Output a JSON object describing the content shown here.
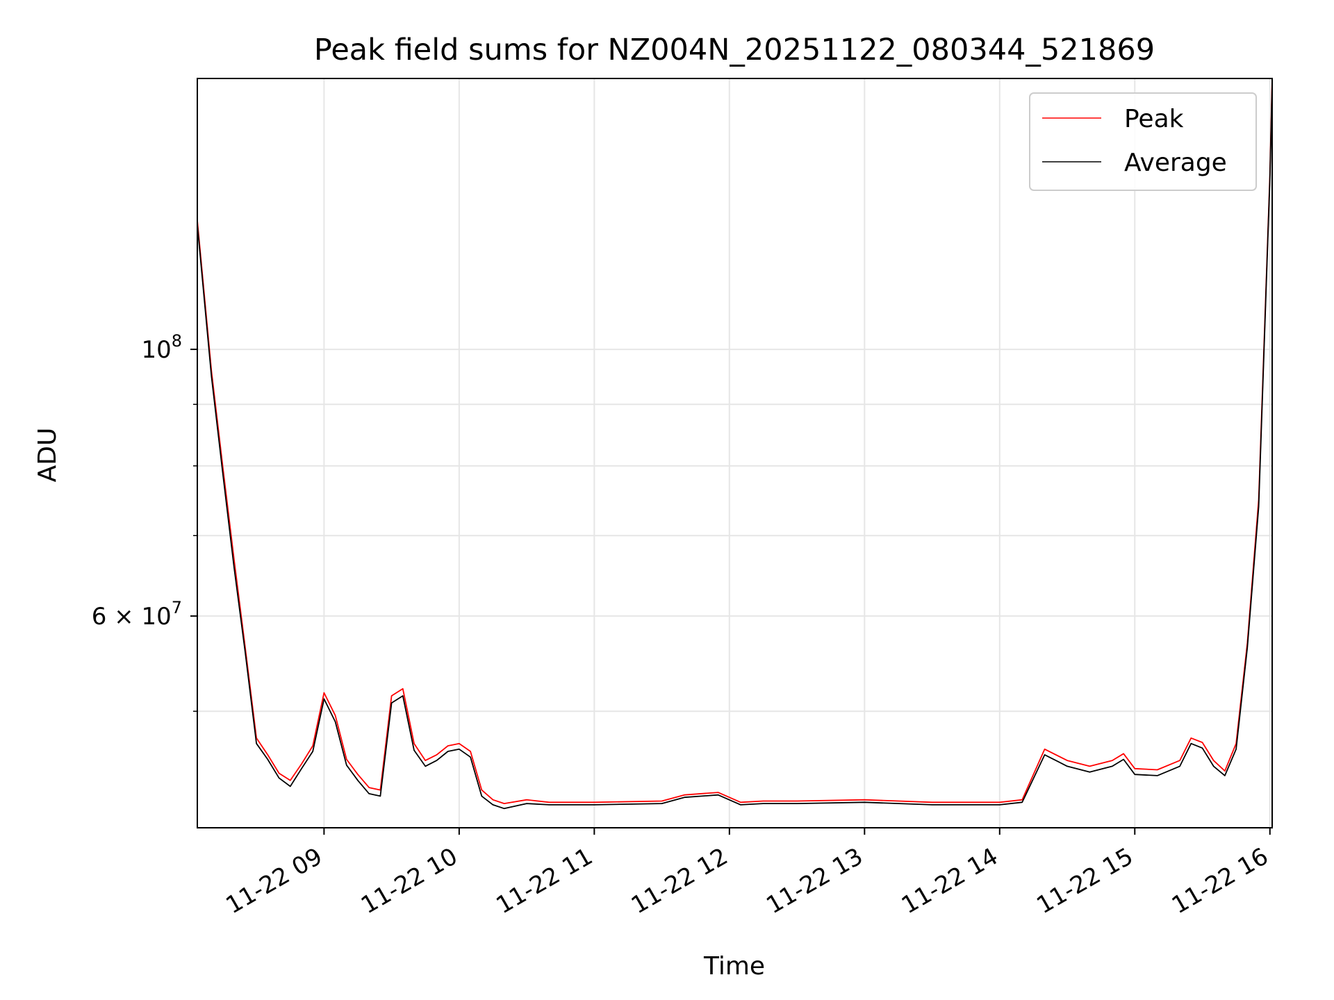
{
  "chart_data": {
    "type": "line",
    "title": "Peak field sums for NZ004N_20251122_080344_521869",
    "xlabel": "Time",
    "ylabel": "ADU",
    "yscale": "log",
    "grid": true,
    "legend_position": "top-right",
    "xlim": [
      "2025-11-22 08:03:44",
      "2025-11-22 16:01:00"
    ],
    "ylim": [
      40000000,
      168000000
    ],
    "x_ticks": [
      {
        "x": "2025-11-22 09:00",
        "label": "11-22 09"
      },
      {
        "x": "2025-11-22 10:00",
        "label": "11-22 10"
      },
      {
        "x": "2025-11-22 11:00",
        "label": "11-22 11"
      },
      {
        "x": "2025-11-22 12:00",
        "label": "11-22 12"
      },
      {
        "x": "2025-11-22 13:00",
        "label": "11-22 13"
      },
      {
        "x": "2025-11-22 14:00",
        "label": "11-22 14"
      },
      {
        "x": "2025-11-22 15:00",
        "label": "11-22 15"
      },
      {
        "x": "2025-11-22 16:00",
        "label": "11-22 16"
      }
    ],
    "y_major_ticks": [
      {
        "y": 60000000,
        "base": "6 × 10",
        "exp": "7"
      },
      {
        "y": 100000000,
        "base": "10",
        "exp": "8"
      }
    ],
    "y_minor_ticks": [
      50000000,
      70000000,
      80000000,
      90000000
    ],
    "x": [
      "08:03:44",
      "08:10",
      "08:15",
      "08:20",
      "08:25",
      "08:30",
      "08:35",
      "08:40",
      "08:45",
      "08:50",
      "08:55",
      "09:00",
      "09:05",
      "09:10",
      "09:15",
      "09:20",
      "09:25",
      "09:30",
      "09:35",
      "09:40",
      "09:45",
      "09:50",
      "09:55",
      "10:00",
      "10:05",
      "10:10",
      "10:15",
      "10:20",
      "10:30",
      "10:40",
      "10:50",
      "11:00",
      "11:30",
      "11:40",
      "11:55",
      "12:05",
      "12:15",
      "12:30",
      "13:00",
      "13:30",
      "14:00",
      "14:10",
      "14:20",
      "14:30",
      "14:40",
      "14:50",
      "14:55",
      "15:00",
      "15:10",
      "15:20",
      "15:25",
      "15:30",
      "15:35",
      "15:40",
      "15:45",
      "15:50",
      "15:55",
      "16:00",
      "16:01"
    ],
    "series": [
      {
        "name": "Peak",
        "color": "#ff0000",
        "values": [
          128000000,
          96000000,
          80000000,
          67000000,
          56500000,
          47500000,
          46000000,
          44400000,
          43800000,
          45200000,
          46800000,
          51800000,
          49600000,
          45600000,
          44300000,
          43200000,
          43000000,
          51500000,
          52200000,
          47000000,
          45500000,
          46000000,
          46800000,
          47000000,
          46300000,
          43000000,
          42200000,
          41900000,
          42200000,
          42000000,
          42000000,
          42000000,
          42100000,
          42600000,
          42800000,
          42000000,
          42100000,
          42100000,
          42200000,
          42000000,
          42000000,
          42200000,
          46500000,
          45500000,
          45000000,
          45500000,
          46100000,
          44800000,
          44700000,
          45500000,
          47500000,
          47100000,
          45500000,
          44600000,
          47000000,
          57000000,
          75000000,
          140000000,
          168000000
        ]
      },
      {
        "name": "Average",
        "color": "#000000",
        "values": [
          127000000,
          95000000,
          79000000,
          66000000,
          56000000,
          47000000,
          45600000,
          44000000,
          43300000,
          44800000,
          46300000,
          51200000,
          49000000,
          45100000,
          43800000,
          42700000,
          42500000,
          50800000,
          51500000,
          46400000,
          45000000,
          45500000,
          46300000,
          46500000,
          45800000,
          42500000,
          41800000,
          41500000,
          41900000,
          41800000,
          41800000,
          41800000,
          41900000,
          42400000,
          42600000,
          41800000,
          41900000,
          41900000,
          42000000,
          41800000,
          41800000,
          42000000,
          46000000,
          45000000,
          44500000,
          45000000,
          45600000,
          44300000,
          44200000,
          45000000,
          47000000,
          46600000,
          45000000,
          44200000,
          46500000,
          56500000,
          74000000,
          139000000,
          166000000
        ]
      }
    ]
  }
}
